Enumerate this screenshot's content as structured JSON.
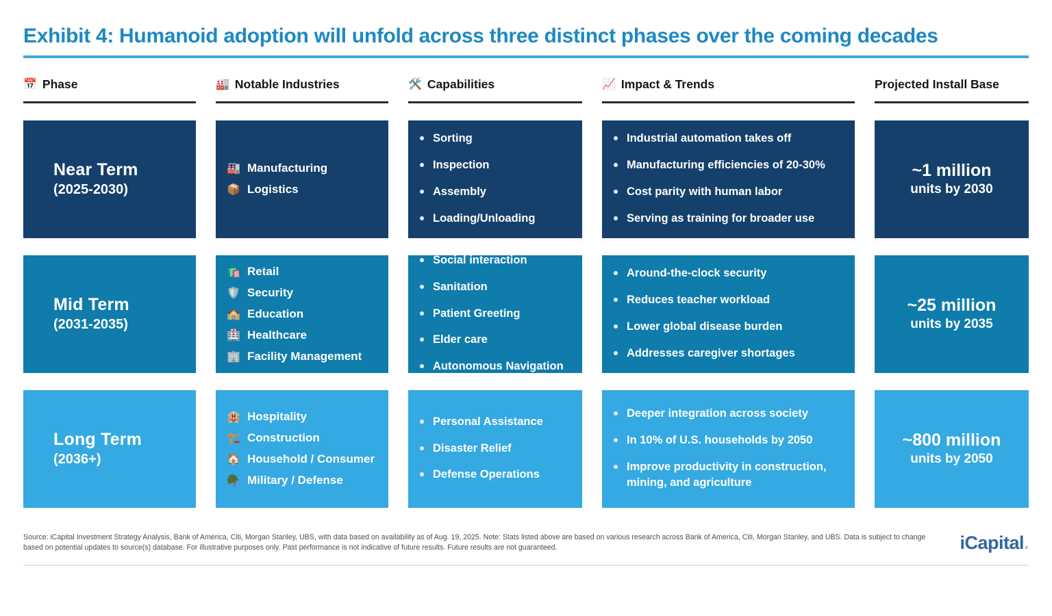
{
  "title": "Exhibit 4: Humanoid adoption will unfold across three distinct phases over the coming decades",
  "colors": {
    "title": "#1e88c2",
    "title_underline": "#41a7da",
    "header_text": "#151515",
    "header_underline": "#2b2b2b",
    "near_term_bg": "#15406b",
    "mid_term_bg": "#0f7cab",
    "long_term_bg": "#35a9e1",
    "tile_text": "#ffffff",
    "logo": "#31689b"
  },
  "columns": [
    {
      "icon": "📅",
      "icon_name": "calendar-icon",
      "label": "Phase"
    },
    {
      "icon": "🏭",
      "icon_name": "factory-icon",
      "label": "Notable Industries"
    },
    {
      "icon": "🛠️",
      "icon_name": "hammer-wrench-icon",
      "label": "Capabilities"
    },
    {
      "icon": "📈",
      "icon_name": "chart-increasing-icon",
      "label": "Impact & Trends"
    },
    {
      "icon": "",
      "icon_name": "",
      "label": "Projected Install Base"
    }
  ],
  "rows": [
    {
      "phase_name": "Near Term",
      "phase_range": "(2025-2030)",
      "bg": "#15406b",
      "industries": [
        {
          "icon": "🏭",
          "icon_name": "factory-icon",
          "label": "Manufacturing"
        },
        {
          "icon": "📦",
          "icon_name": "package-icon",
          "label": "Logistics"
        }
      ],
      "capabilities": [
        "Sorting",
        "Inspection",
        "Assembly",
        "Loading/Unloading"
      ],
      "impacts": [
        "Industrial automation takes off",
        "Manufacturing efficiencies of 20-30%",
        "Cost parity with human labor",
        "Serving as training for broader use"
      ],
      "install_value": "~1 million",
      "install_sub": "units by 2030"
    },
    {
      "phase_name": "Mid Term",
      "phase_range": "(2031-2035)",
      "bg": "#0f7cab",
      "industries": [
        {
          "icon": "🛍️",
          "icon_name": "shopping-bags-icon",
          "label": "Retail"
        },
        {
          "icon": "🛡️",
          "icon_name": "shield-icon",
          "label": "Security"
        },
        {
          "icon": "🏫",
          "icon_name": "school-icon",
          "label": "Education"
        },
        {
          "icon": "🏥",
          "icon_name": "hospital-icon",
          "label": "Healthcare"
        },
        {
          "icon": "🏢",
          "icon_name": "office-building-icon",
          "label": "Facility Management"
        }
      ],
      "capabilities": [
        "Social interaction",
        "Sanitation",
        "Patient Greeting",
        "Elder care",
        "Autonomous Navigation"
      ],
      "impacts": [
        "Around-the-clock security",
        "Reduces teacher workload",
        "Lower global disease burden",
        "Addresses caregiver shortages"
      ],
      "install_value": "~25 million",
      "install_sub": "units by 2035"
    },
    {
      "phase_name": "Long Term",
      "phase_range": "(2036+)",
      "bg": "#35a9e1",
      "industries": [
        {
          "icon": "🏨",
          "icon_name": "hotel-icon",
          "label": "Hospitality"
        },
        {
          "icon": "🏗️",
          "icon_name": "building-construction-icon",
          "label": "Construction"
        },
        {
          "icon": "🏠",
          "icon_name": "house-icon",
          "label": "Household / Consumer"
        },
        {
          "icon": "🪖",
          "icon_name": "military-helmet-icon",
          "label": "Military / Defense"
        }
      ],
      "capabilities": [
        "Personal Assistance",
        "Disaster Relief",
        "Defense Operations"
      ],
      "impacts": [
        "Deeper integration across society",
        "In 10% of U.S. households by 2050",
        "Improve productivity in construction, mining, and agriculture"
      ],
      "install_value": "~800 million",
      "install_sub": "units by 2050"
    }
  ],
  "footer": {
    "source": "Source: iCapital Investment Strategy Analysis, Bank of America, Citi, Morgan Stanley, UBS, with data based on availability as of Aug. 19, 2025. Note: Stats listed above are based on various research across Bank of America, Citi, Morgan Stanley, and UBS. Data is subject to change based on potential updates to source(s) database. For illustrative purposes only. Past performance is not indicative of future results. Future results are not guaranteed."
  },
  "logo": {
    "text": "iCapital",
    "dot": "."
  }
}
